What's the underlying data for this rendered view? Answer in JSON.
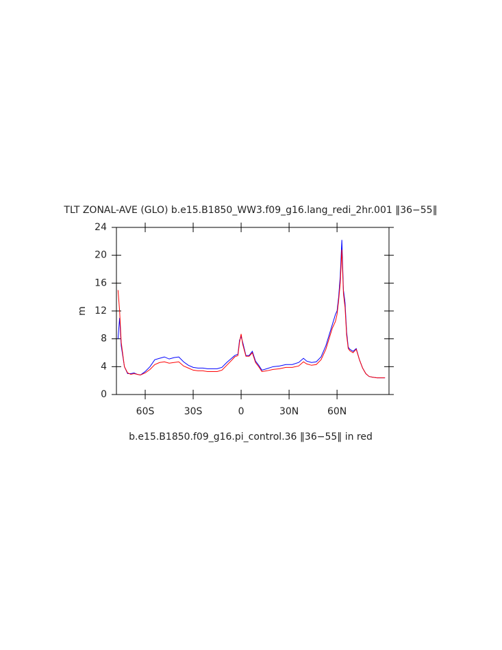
{
  "chart_data": {
    "type": "line",
    "title": "TLT ZONAL-AVE (GLO) b.e15.B1850_WW3.f09_g16.lang_redi_2hr.001 ‖36−55‖",
    "subtitle": "b.e15.B1850.f09_g16.pi_control.36 ‖36−55‖ in red",
    "ylabel": "m",
    "x": [
      -77,
      -76,
      -75,
      -73,
      -71,
      -69,
      -67,
      -65,
      -63,
      -60,
      -57,
      -54,
      -51,
      -48,
      -45,
      -42,
      -39,
      -36,
      -33,
      -30,
      -27,
      -24,
      -21,
      -18,
      -15,
      -12,
      -9,
      -6,
      -4,
      -2,
      -1,
      0,
      1,
      3,
      5,
      7,
      9,
      11,
      13,
      16,
      20,
      24,
      28,
      32,
      36,
      39,
      41,
      44,
      47,
      50,
      53,
      55,
      57,
      59,
      60,
      61,
      62,
      63,
      64,
      65,
      66,
      67,
      68,
      70,
      72,
      74,
      76,
      78,
      80,
      82,
      85,
      88,
      90
    ],
    "series": [
      {
        "color": "#0000ff",
        "values": [
          8,
          11,
          7,
          4,
          3,
          3,
          3.1,
          2.9,
          2.8,
          3.3,
          4,
          5,
          5.2,
          5.4,
          5.1,
          5.3,
          5.4,
          4.7,
          4.2,
          3.9,
          3.8,
          3.8,
          3.7,
          3.7,
          3.7,
          3.9,
          4.6,
          5.2,
          5.6,
          5.8,
          7.8,
          8.3,
          7.5,
          5.6,
          5.6,
          6.2,
          4.8,
          4.2,
          3.5,
          3.7,
          4,
          4.1,
          4.3,
          4.3,
          4.6,
          5.2,
          4.8,
          4.6,
          4.7,
          5.4,
          7,
          8.5,
          10,
          11.5,
          12,
          14,
          17,
          22.2,
          15,
          13.2,
          9,
          6.8,
          6.5,
          6.2,
          6.6,
          5,
          3.8,
          3,
          2.6,
          2.5,
          2.4,
          2.4,
          2.4
        ]
      },
      {
        "color": "#ff0000",
        "values": [
          15,
          12,
          7.5,
          4,
          3.1,
          2.9,
          3,
          2.9,
          2.8,
          3.1,
          3.6,
          4.3,
          4.6,
          4.7,
          4.5,
          4.6,
          4.7,
          4.1,
          3.8,
          3.5,
          3.4,
          3.4,
          3.3,
          3.3,
          3.3,
          3.5,
          4.2,
          4.9,
          5.4,
          5.6,
          7.5,
          8.7,
          7.2,
          5.5,
          5.5,
          6,
          4.6,
          4,
          3.3,
          3.4,
          3.6,
          3.7,
          3.9,
          3.9,
          4.1,
          4.7,
          4.4,
          4.2,
          4.3,
          5,
          6.5,
          8,
          9.5,
          10.5,
          11.5,
          13.5,
          16,
          20.8,
          14.5,
          12.5,
          8.5,
          6.6,
          6.3,
          6,
          6.5,
          5,
          3.8,
          3,
          2.6,
          2.5,
          2.4,
          2.4,
          2.4
        ]
      }
    ],
    "xlim": [
      -78,
      92.5
    ],
    "xticks": [
      {
        "value": -60,
        "label": "60S"
      },
      {
        "value": -30,
        "label": "30S"
      },
      0,
      {
        "value": 30,
        "label": "30N"
      },
      {
        "value": 60,
        "label": "60N"
      }
    ],
    "ylim": [
      0,
      24
    ],
    "yticks": [
      0,
      4,
      8,
      12,
      16,
      20,
      24
    ]
  }
}
